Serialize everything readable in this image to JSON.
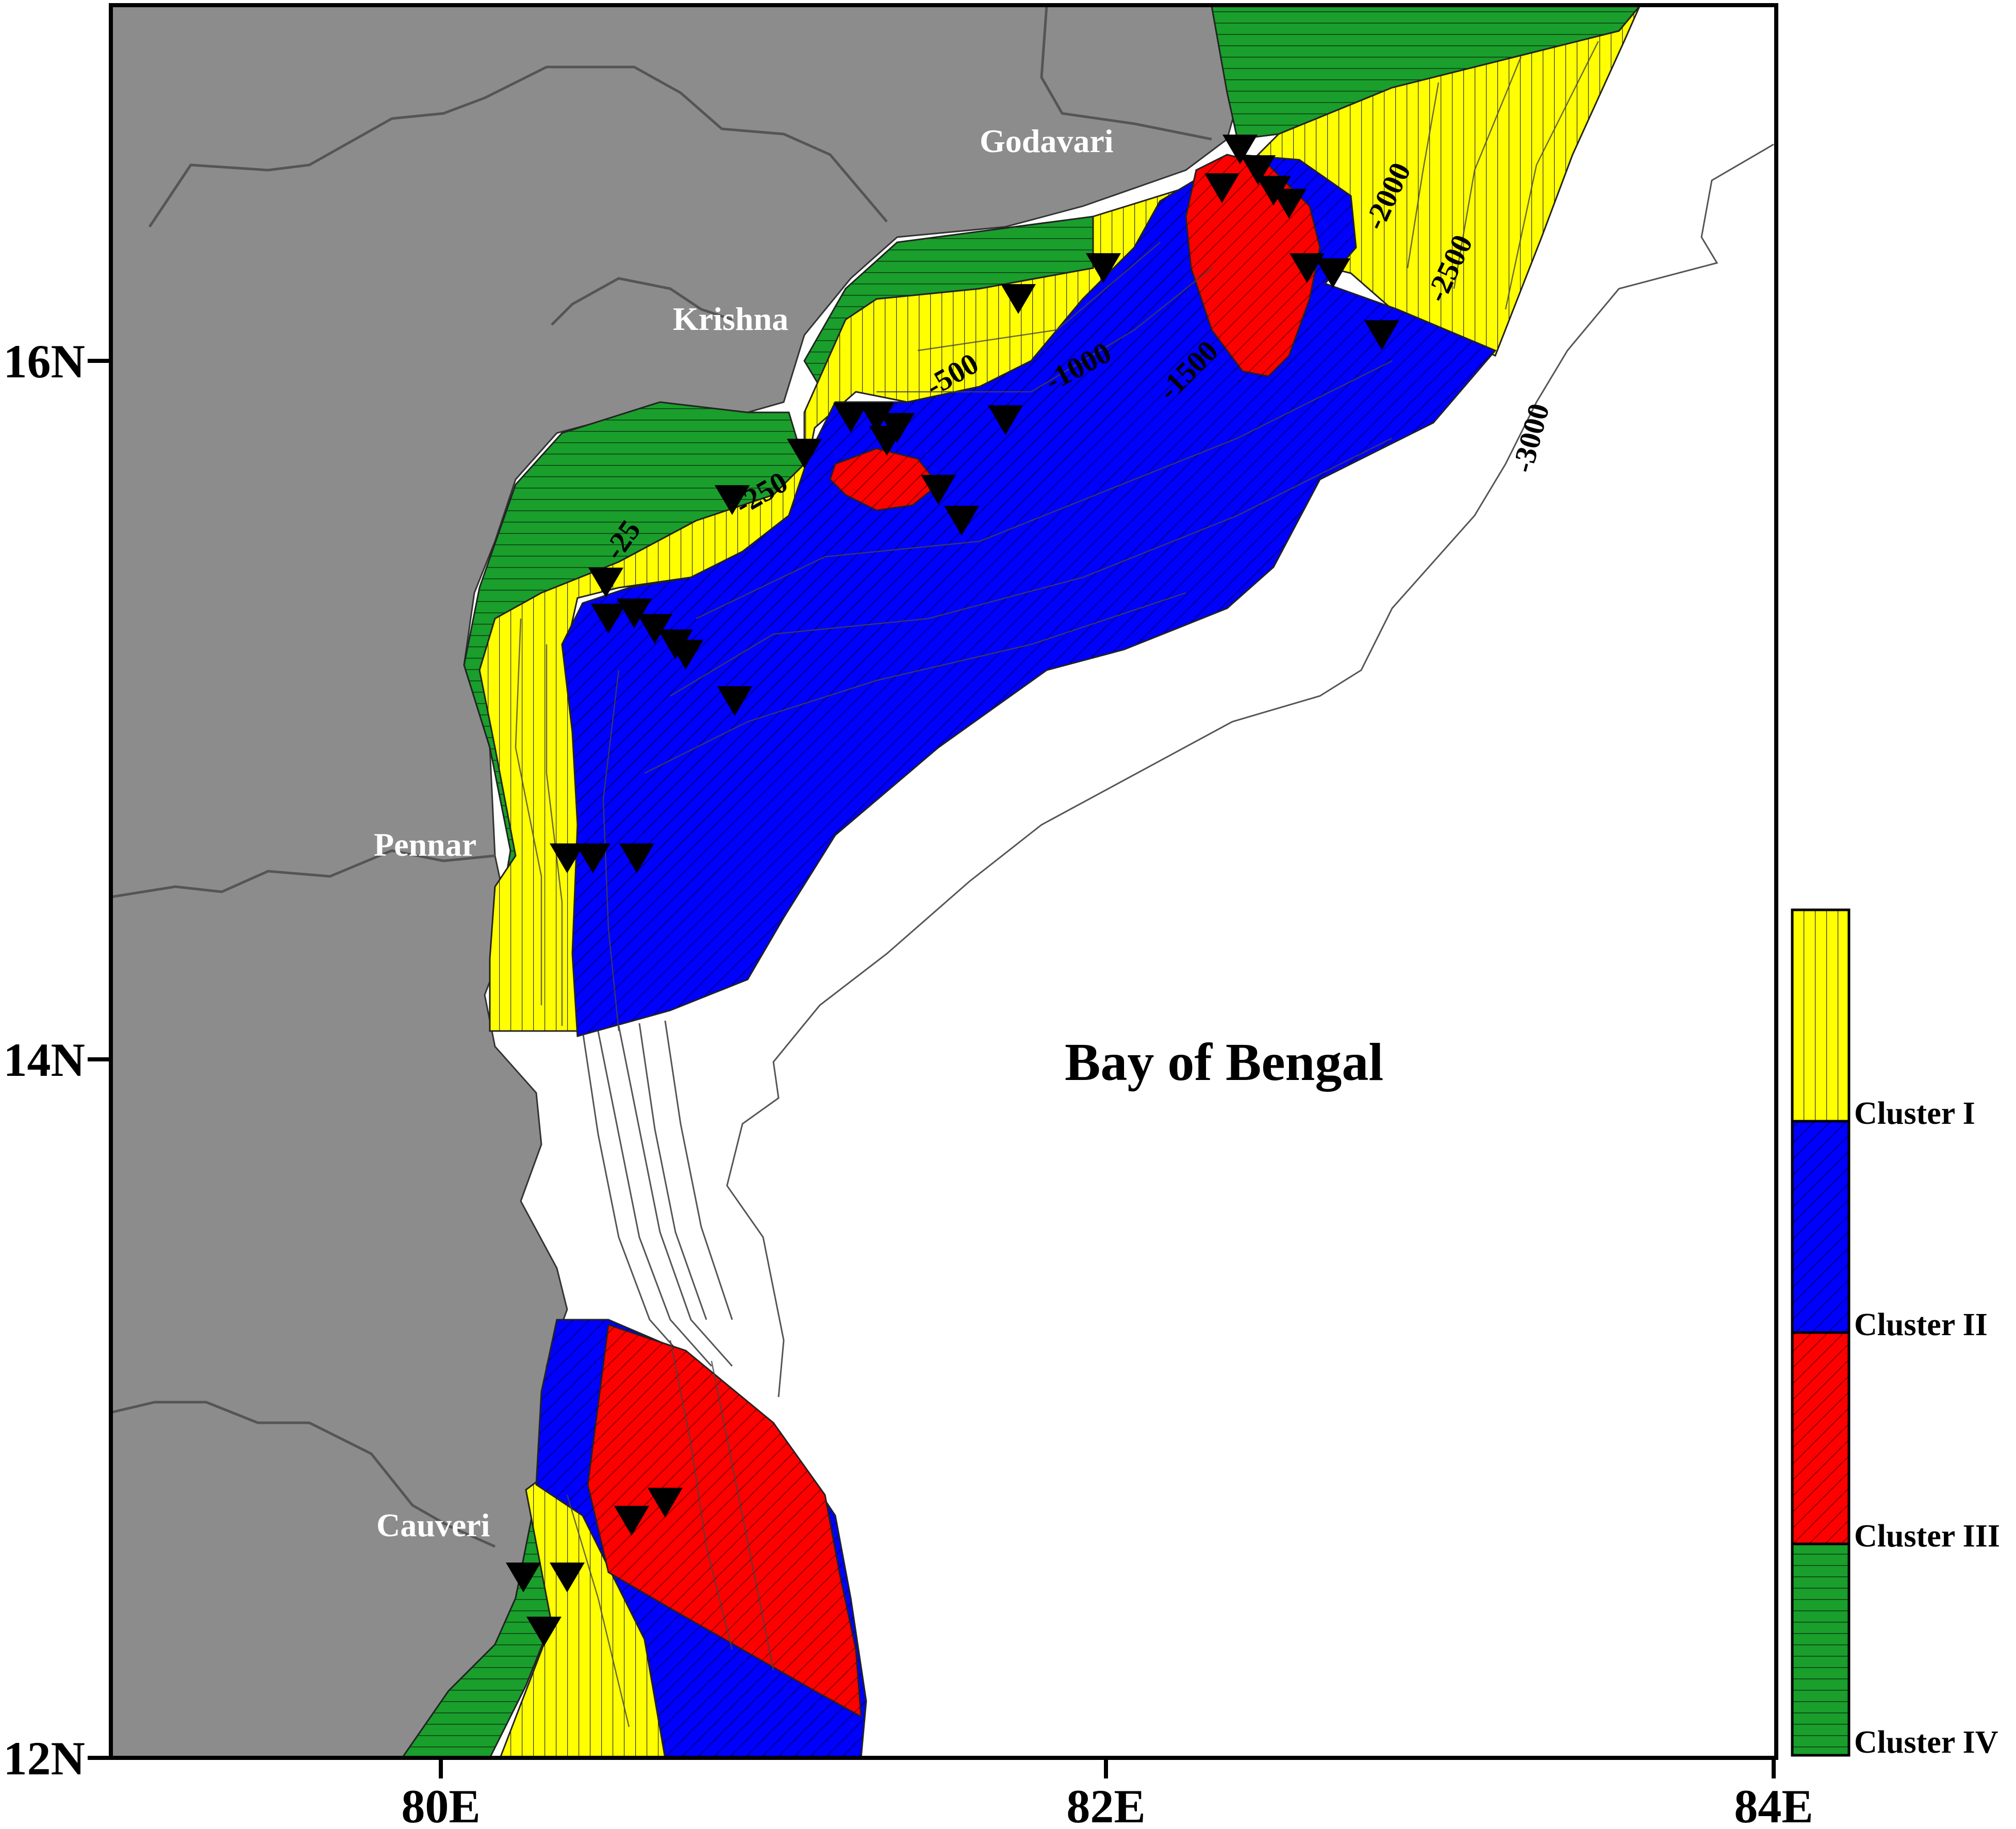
{
  "map": {
    "sea_label": "Bay of Bengal",
    "rivers": [
      "Godavari",
      "Krishna",
      "Pennar",
      "Cauveri"
    ],
    "x_ticks": [
      "80E",
      "82E",
      "84E"
    ],
    "y_ticks": [
      "16N",
      "14N",
      "12N"
    ],
    "contour_labels": [
      "-25",
      "-250",
      "-500",
      "-1000",
      "-1500",
      "-2000",
      "-2500",
      "-3000"
    ],
    "legend": [
      {
        "label": "Cluster I",
        "color": "#ffff00",
        "pattern": "vertical-lines"
      },
      {
        "label": "Cluster II",
        "color": "#0000ff",
        "pattern": "diagonal-lines"
      },
      {
        "label": "Cluster III",
        "color": "#ff0000",
        "pattern": "diagonal-lines"
      },
      {
        "label": "Cluster IV",
        "color": "#1a9e2c",
        "pattern": "horizontal-lines"
      }
    ],
    "land_color": "#8c8c8c",
    "station_marker": "black-down-triangle-icon"
  }
}
